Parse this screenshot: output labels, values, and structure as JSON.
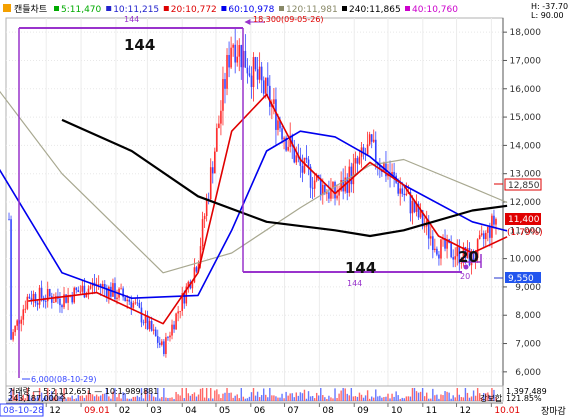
{
  "legend": {
    "title": "캔들차트",
    "items": [
      {
        "label": "5:11,470",
        "color": "#00aa00"
      },
      {
        "label": "10:11,215",
        "color": "#2222cc"
      },
      {
        "label": "20:10,772",
        "color": "#dd0000"
      },
      {
        "label": "60:10,978",
        "color": "#0000ee"
      },
      {
        "label": "120:11,981",
        "color": "#888866"
      },
      {
        "label": "240:11,865",
        "color": "#000000"
      },
      {
        "label": "40:10,760",
        "color": "#cc00cc"
      }
    ],
    "high_label": "H: -37.70",
    "low_label": "L: 90.00"
  },
  "annotations": {
    "count_left": "144",
    "count_left_small": "144",
    "count_mid": "144",
    "count_mid_small": "144",
    "count_right": "20",
    "count_right_small": "20",
    "high_marker": "18,300(09-05-26)",
    "low_marker": "6,000(08-10-29)"
  },
  "price_tags": {
    "upper": "12,850",
    "current": "11,400",
    "change": "(1.79%)",
    "lower": "9,550"
  },
  "volume": {
    "line1": "거래량 — 5:2,112,651 — 10:1,989,881",
    "line2": "243,187,000주",
    "right_value": "1,397,489",
    "right_label": "강보합",
    "right_pct": "121.85%"
  },
  "axis": {
    "start_date": "08-10-28",
    "months": [
      "12",
      "09.01",
      "02",
      "03",
      "04",
      "05",
      "06",
      "07",
      "08",
      "09",
      "10",
      "11",
      "12",
      "10.01"
    ],
    "end_label": "장마감"
  },
  "colors": {
    "up_candle": "#ff2a2a",
    "down_candle": "#3344ff",
    "annotation": "#9933cc"
  },
  "chart_data": {
    "type": "candlestick",
    "x_range": [
      "2008-10",
      "2010-01"
    ],
    "ylim": [
      5500,
      18500
    ],
    "y_ticks": [
      6000,
      7000,
      8000,
      9000,
      10000,
      11000,
      12000,
      13000,
      14000,
      15000,
      16000,
      17000,
      18000
    ],
    "price_path": [
      {
        "date": "2008-10",
        "value": 7000
      },
      {
        "date": "2008-11",
        "value": 8700
      },
      {
        "date": "2008-12",
        "value": 8600
      },
      {
        "date": "2009-01",
        "value": 9100
      },
      {
        "date": "2009-02",
        "value": 8500
      },
      {
        "date": "2009-03",
        "value": 6800
      },
      {
        "date": "2009-04",
        "value": 10000
      },
      {
        "date": "2009-05",
        "value": 17800
      },
      {
        "date": "2009-06",
        "value": 15800
      },
      {
        "date": "2009-07",
        "value": 13200
      },
      {
        "date": "2009-08",
        "value": 12200
      },
      {
        "date": "2009-09",
        "value": 13900
      },
      {
        "date": "2009-10",
        "value": 12300
      },
      {
        "date": "2009-11",
        "value": 10400
      },
      {
        "date": "2009-12",
        "value": 10000
      },
      {
        "date": "2010-01",
        "value": 11400
      }
    ],
    "ma_240": [
      {
        "date": "2008-12",
        "value": 14900
      },
      {
        "date": "2009-02",
        "value": 13800
      },
      {
        "date": "2009-04",
        "value": 12200
      },
      {
        "date": "2009-06",
        "value": 11300
      },
      {
        "date": "2009-08",
        "value": 11000
      },
      {
        "date": "2009-09",
        "value": 10800
      },
      {
        "date": "2009-10",
        "value": 11000
      },
      {
        "date": "2009-12",
        "value": 11700
      },
      {
        "date": "2010-01",
        "value": 11865
      }
    ],
    "ma_60": [
      {
        "date": "2008-10",
        "value": 13500
      },
      {
        "date": "2008-12",
        "value": 9500
      },
      {
        "date": "2009-02",
        "value": 8600
      },
      {
        "date": "2009-04",
        "value": 8700
      },
      {
        "date": "2009-05",
        "value": 11000
      },
      {
        "date": "2009-06",
        "value": 13800
      },
      {
        "date": "2009-07",
        "value": 14500
      },
      {
        "date": "2009-08",
        "value": 14300
      },
      {
        "date": "2009-09",
        "value": 13600
      },
      {
        "date": "2009-10",
        "value": 12600
      },
      {
        "date": "2009-12",
        "value": 11300
      },
      {
        "date": "2010-01",
        "value": 10978
      }
    ],
    "ma_120": [
      {
        "date": "2008-10",
        "value": 16200
      },
      {
        "date": "2008-12",
        "value": 13000
      },
      {
        "date": "2009-03",
        "value": 9500
      },
      {
        "date": "2009-05",
        "value": 10200
      },
      {
        "date": "2009-07",
        "value": 11800
      },
      {
        "date": "2009-09",
        "value": 13300
      },
      {
        "date": "2009-10",
        "value": 13500
      },
      {
        "date": "2009-12",
        "value": 12500
      },
      {
        "date": "2010-01",
        "value": 11981
      }
    ],
    "ma_20": [
      {
        "date": "2008-11",
        "value": 8500
      },
      {
        "date": "2009-01",
        "value": 8800
      },
      {
        "date": "2009-03",
        "value": 7700
      },
      {
        "date": "2009-04",
        "value": 9500
      },
      {
        "date": "2009-05",
        "value": 14500
      },
      {
        "date": "2009-06",
        "value": 15800
      },
      {
        "date": "2009-07",
        "value": 13500
      },
      {
        "date": "2009-08",
        "value": 12300
      },
      {
        "date": "2009-09",
        "value": 13400
      },
      {
        "date": "2009-10",
        "value": 12600
      },
      {
        "date": "2009-11",
        "value": 10800
      },
      {
        "date": "2009-12",
        "value": 10200
      },
      {
        "date": "2010-01",
        "value": 10772
      }
    ],
    "high": {
      "date": "2009-05-26",
      "value": 18300
    },
    "low": {
      "date": "2008-10-29",
      "value": 6000
    }
  }
}
